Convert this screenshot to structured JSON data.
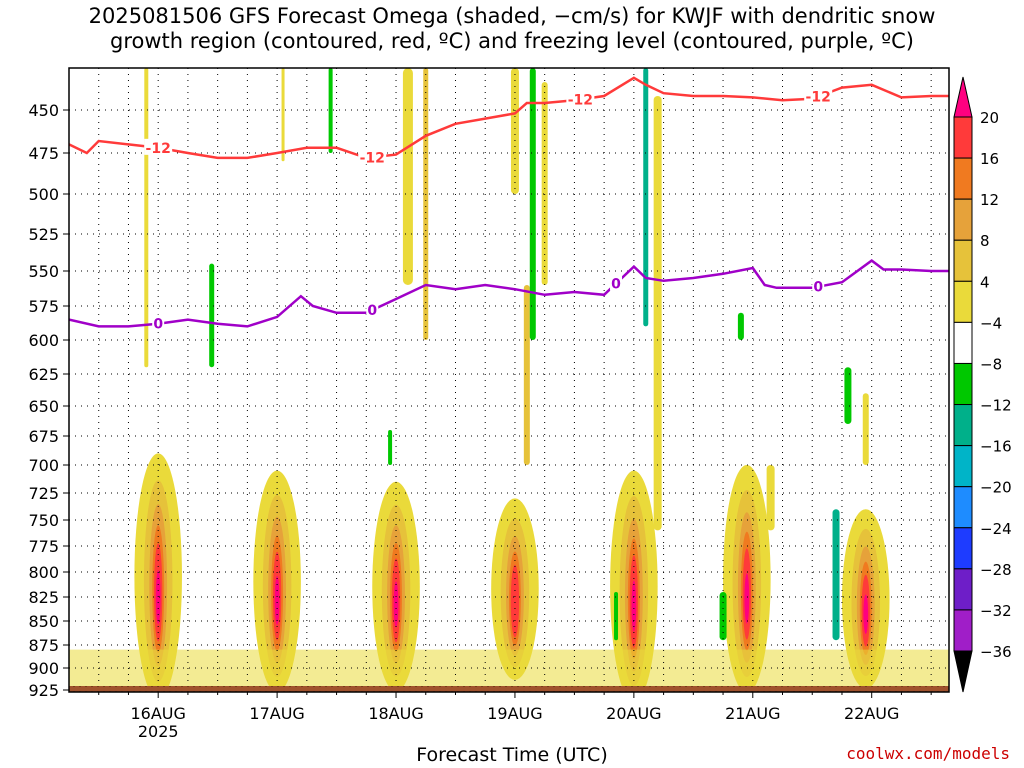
{
  "title_line1": "2025081506 GFS Forecast Omega (shaded, −cm/s) for KWJF with dendritic snow",
  "title_line2": "growth region (contoured, red, ºC) and freezing level (contoured, purple, ºC)",
  "credit": "coolwx.com/models",
  "chart_data": {
    "type": "heatmap",
    "title": "2025081506 GFS Forecast Omega (shaded, −cm/s) for KWJF with dendritic snow growth region (contoured, red, ºC) and freezing level (contoured, purple, ºC)",
    "xlabel": "Forecast Time (UTC)",
    "ylabel": "",
    "x_ticks": [
      "16AUG",
      "17AUG",
      "18AUG",
      "19AUG",
      "20AUG",
      "21AUG",
      "22AUG"
    ],
    "x_year": "2025",
    "y_ticks": [
      450,
      475,
      500,
      525,
      550,
      575,
      600,
      625,
      650,
      675,
      700,
      725,
      750,
      775,
      800,
      825,
      850,
      875,
      900,
      925
    ],
    "xlim_days": [
      -0.75,
      6.65
    ],
    "ylim_hpa": [
      925,
      420
    ],
    "grid": true,
    "colorbar": {
      "labels": [
        "20",
        "16",
        "12",
        "8",
        "4",
        "−4",
        "−8",
        "−12",
        "−16",
        "−20",
        "−24",
        "−28",
        "−32",
        "−36"
      ],
      "colors": [
        "#ff0080",
        "#ff3a3a",
        "#f07a20",
        "#e6a23a",
        "#e6c23a",
        "#eada3a",
        "#ffffff",
        "#00c800",
        "#00b08a",
        "#00b4c8",
        "#1e8cff",
        "#1e3cff",
        "#6e1ec8",
        "#a01ec8",
        "#a0a0a0",
        "#000000"
      ]
    },
    "contour_minus12_label": "-12",
    "freezing_level_label": "0",
    "freezing_level": {
      "x_days": [
        -0.75,
        -0.5,
        -0.25,
        0.0,
        0.25,
        0.5,
        0.75,
        1.0,
        1.2,
        1.3,
        1.5,
        1.75,
        2.0,
        2.25,
        2.5,
        2.75,
        3.0,
        3.25,
        3.5,
        3.75,
        4.0,
        4.1,
        4.25,
        4.5,
        4.75,
        5.0,
        5.1,
        5.2,
        5.5,
        5.75,
        6.0,
        6.1,
        6.25,
        6.5,
        6.65
      ],
      "pressure_hpa": [
        585,
        590,
        590,
        588,
        585,
        588,
        590,
        583,
        568,
        575,
        580,
        580,
        570,
        560,
        563,
        560,
        563,
        567,
        565,
        567,
        547,
        555,
        557,
        555,
        552,
        548,
        560,
        562,
        562,
        558,
        543,
        549,
        549,
        550,
        550
      ]
    },
    "dgz_minus12": {
      "x_days": [
        -0.75,
        -0.6,
        -0.5,
        -0.25,
        0.0,
        0.25,
        0.5,
        0.75,
        1.0,
        1.25,
        1.5,
        1.75,
        2.0,
        2.25,
        2.5,
        2.75,
        3.0,
        3.1,
        3.25,
        3.5,
        3.75,
        4.0,
        4.1,
        4.25,
        4.5,
        4.75,
        5.0,
        5.25,
        5.5,
        5.75,
        6.0,
        6.25,
        6.5,
        6.65
      ],
      "pressure_hpa": [
        470,
        475,
        468,
        470,
        472,
        475,
        478,
        478,
        475,
        472,
        472,
        478,
        476,
        465,
        458,
        455,
        452,
        445,
        445,
        443,
        440,
        427,
        432,
        438,
        440,
        440,
        441,
        443,
        442,
        434,
        432,
        441,
        440,
        440
      ]
    },
    "ascent_cores": [
      {
        "x_center_days": 0.0,
        "p_top": 690,
        "p_bottom": 910,
        "max_cms": 22
      },
      {
        "x_center_days": 1.0,
        "p_top": 705,
        "p_bottom": 905,
        "max_cms": 21
      },
      {
        "x_center_days": 2.0,
        "p_top": 715,
        "p_bottom": 905,
        "max_cms": 21
      },
      {
        "x_center_days": 3.0,
        "p_top": 730,
        "p_bottom": 895,
        "max_cms": 17
      },
      {
        "x_center_days": 4.0,
        "p_top": 705,
        "p_bottom": 915,
        "max_cms": 20
      },
      {
        "x_center_days": 4.95,
        "p_top": 700,
        "p_bottom": 905,
        "max_cms": 21
      },
      {
        "x_center_days": 5.95,
        "p_top": 740,
        "p_bottom": 905,
        "max_cms": 21
      }
    ]
  }
}
